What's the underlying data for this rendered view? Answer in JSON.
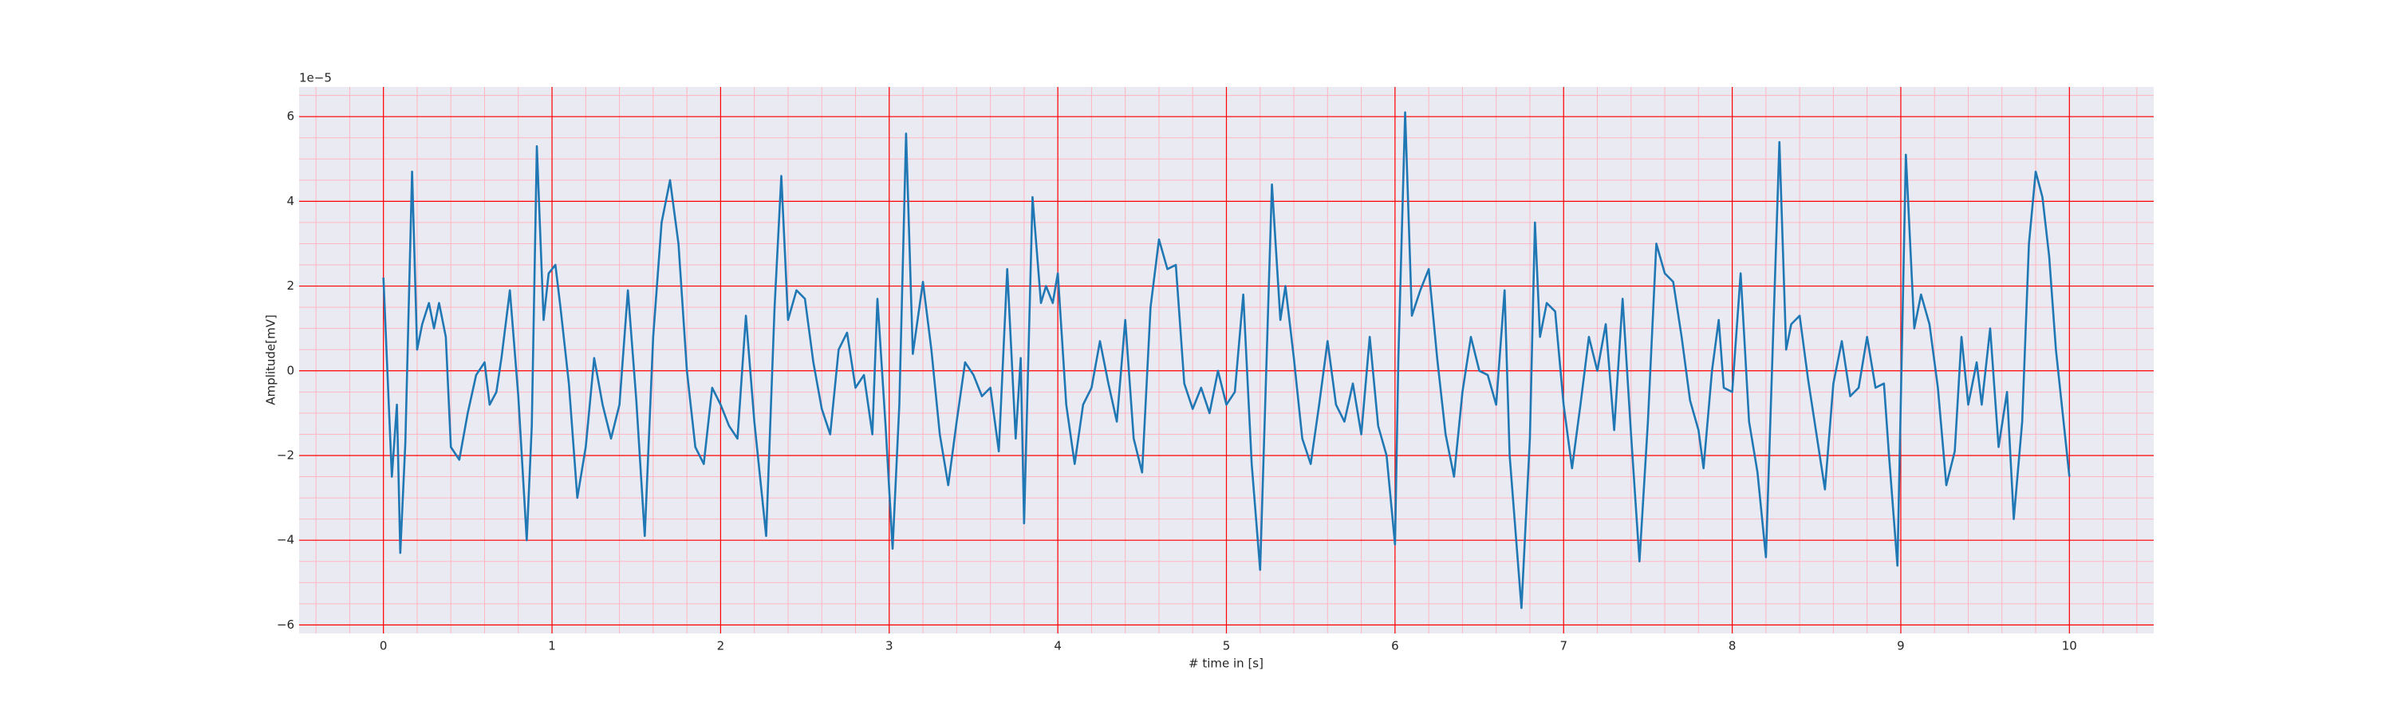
{
  "chart_data": {
    "type": "line",
    "xlabel": "# time in [s]",
    "ylabel": "Amplitude[mV]",
    "y_offset_text": "1e−5",
    "color": "#1f77b4",
    "x": [
      0,
      0.05,
      0.08,
      0.1,
      0.13,
      0.17,
      0.2,
      0.23,
      0.27,
      0.3,
      0.33,
      0.37,
      0.4,
      0.45,
      0.5,
      0.55,
      0.6,
      0.63,
      0.67,
      0.7,
      0.75,
      0.8,
      0.85,
      0.88,
      0.91,
      0.95,
      0.98,
      1.02,
      1.05,
      1.1,
      1.15,
      1.2,
      1.25,
      1.3,
      1.35,
      1.4,
      1.45,
      1.5,
      1.55,
      1.6,
      1.65,
      1.7,
      1.75,
      1.8,
      1.85,
      1.9,
      1.95,
      2.0,
      2.05,
      2.1,
      2.15,
      2.2,
      2.27,
      2.32,
      2.36,
      2.4,
      2.45,
      2.5,
      2.55,
      2.6,
      2.65,
      2.7,
      2.75,
      2.8,
      2.85,
      2.9,
      2.93,
      2.98,
      3.02,
      3.06,
      3.1,
      3.14,
      3.2,
      3.25,
      3.3,
      3.35,
      3.4,
      3.45,
      3.5,
      3.55,
      3.6,
      3.65,
      3.7,
      3.75,
      3.78,
      3.8,
      3.85,
      3.9,
      3.93,
      3.97,
      4.0,
      4.05,
      4.1,
      4.15,
      4.2,
      4.25,
      4.3,
      4.35,
      4.4,
      4.45,
      4.5,
      4.55,
      4.6,
      4.65,
      4.7,
      4.75,
      4.8,
      4.85,
      4.9,
      4.95,
      5.0,
      5.05,
      5.1,
      5.15,
      5.2,
      5.27,
      5.32,
      5.35,
      5.4,
      5.45,
      5.5,
      5.55,
      5.6,
      5.65,
      5.7,
      5.75,
      5.8,
      5.85,
      5.9,
      5.95,
      6.0,
      6.02,
      6.06,
      6.1,
      6.15,
      6.2,
      6.25,
      6.3,
      6.35,
      6.4,
      6.45,
      6.5,
      6.55,
      6.6,
      6.65,
      6.68,
      6.75,
      6.8,
      6.83,
      6.86,
      6.9,
      6.95,
      7.0,
      7.05,
      7.1,
      7.15,
      7.2,
      7.25,
      7.3,
      7.35,
      7.4,
      7.45,
      7.5,
      7.55,
      7.6,
      7.65,
      7.7,
      7.75,
      7.8,
      7.83,
      7.88,
      7.92,
      7.95,
      8.0,
      8.05,
      8.1,
      8.15,
      8.2,
      8.28,
      8.32,
      8.35,
      8.4,
      8.45,
      8.5,
      8.55,
      8.6,
      8.65,
      8.7,
      8.75,
      8.8,
      8.85,
      8.9,
      8.93,
      8.98,
      9.03,
      9.08,
      9.12,
      9.17,
      9.22,
      9.27,
      9.32,
      9.36,
      9.4,
      9.45,
      9.48,
      9.53,
      9.58,
      9.63,
      9.67,
      9.72,
      9.76,
      9.8,
      9.84,
      9.88,
      9.92,
      10.0
    ],
    "values": [
      2.2,
      -2.5,
      -0.8,
      -4.3,
      -1.7,
      4.7,
      0.5,
      1.1,
      1.6,
      1.0,
      1.6,
      0.8,
      -1.8,
      -2.1,
      -1.0,
      -0.1,
      0.2,
      -0.8,
      -0.5,
      0.3,
      1.9,
      -0.6,
      -4.0,
      -1.3,
      5.3,
      1.2,
      2.3,
      2.5,
      1.5,
      -0.3,
      -3.0,
      -1.8,
      0.3,
      -0.8,
      -1.6,
      -0.8,
      1.9,
      -0.7,
      -3.9,
      0.8,
      3.5,
      4.5,
      3.0,
      0.0,
      -1.8,
      -2.2,
      -0.4,
      -0.8,
      -1.3,
      -1.6,
      1.3,
      -1.2,
      -3.9,
      1.5,
      4.6,
      1.2,
      1.9,
      1.7,
      0.2,
      -0.9,
      -1.5,
      0.5,
      0.9,
      -0.4,
      -0.1,
      -1.5,
      1.7,
      -1.4,
      -4.2,
      -0.8,
      5.6,
      0.4,
      2.1,
      0.5,
      -1.5,
      -2.7,
      -1.2,
      0.2,
      -0.1,
      -0.6,
      -0.4,
      -1.9,
      2.4,
      -1.6,
      0.3,
      -3.6,
      4.1,
      1.6,
      2.0,
      1.6,
      2.3,
      -0.8,
      -2.2,
      -0.8,
      -0.4,
      0.7,
      -0.3,
      -1.2,
      1.2,
      -1.6,
      -2.4,
      1.5,
      3.1,
      2.4,
      2.5,
      -0.3,
      -0.9,
      -0.4,
      -1.0,
      0.0,
      -0.8,
      -0.5,
      1.8,
      -2.2,
      -4.7,
      4.4,
      1.2,
      2.0,
      0.3,
      -1.6,
      -2.2,
      -0.8,
      0.7,
      -0.8,
      -1.2,
      -0.3,
      -1.5,
      0.8,
      -1.3,
      -2.0,
      -4.1,
      0.3,
      6.1,
      1.3,
      1.9,
      2.4,
      0.3,
      -1.5,
      -2.5,
      -0.5,
      0.8,
      0.0,
      -0.1,
      -0.8,
      1.9,
      -2.0,
      -5.6,
      -1.6,
      3.5,
      0.8,
      1.6,
      1.4,
      -0.8,
      -2.3,
      -0.8,
      0.8,
      0.0,
      1.1,
      -1.4,
      1.7,
      -1.5,
      -4.5,
      -1.2,
      3.0,
      2.3,
      2.1,
      0.8,
      -0.7,
      -1.4,
      -2.3,
      0.0,
      1.2,
      -0.4,
      -0.5,
      2.3,
      -1.2,
      -2.4,
      -4.4,
      5.4,
      0.5,
      1.1,
      1.3,
      -0.2,
      -1.5,
      -2.8,
      -0.3,
      0.7,
      -0.6,
      -0.4,
      0.8,
      -0.4,
      -0.3,
      -2.0,
      -4.6,
      5.1,
      1.0,
      1.8,
      1.1,
      -0.4,
      -2.7,
      -1.9,
      0.8,
      -0.8,
      0.2,
      -0.8,
      1.0,
      -1.8,
      -0.5,
      -3.5,
      -1.2,
      3.0,
      4.7,
      4.1,
      2.7,
      0.5,
      -2.5
    ],
    "xlim": [
      -0.5,
      10.5
    ],
    "xticks": [
      0,
      1,
      2,
      3,
      4,
      5,
      6,
      7,
      8,
      9,
      10
    ],
    "ylim": [
      -6.2,
      6.7
    ],
    "yticks": [
      {
        "value": -6,
        "label": "−6"
      },
      {
        "value": -4,
        "label": "−4"
      },
      {
        "value": -2,
        "label": "−2"
      },
      0,
      2,
      4,
      6
    ],
    "grid": true,
    "grid_color": "#ff0000",
    "minor_grid_color": "#ffb6c1",
    "xminor_step": 0.2,
    "yminor_step": 0.5
  }
}
